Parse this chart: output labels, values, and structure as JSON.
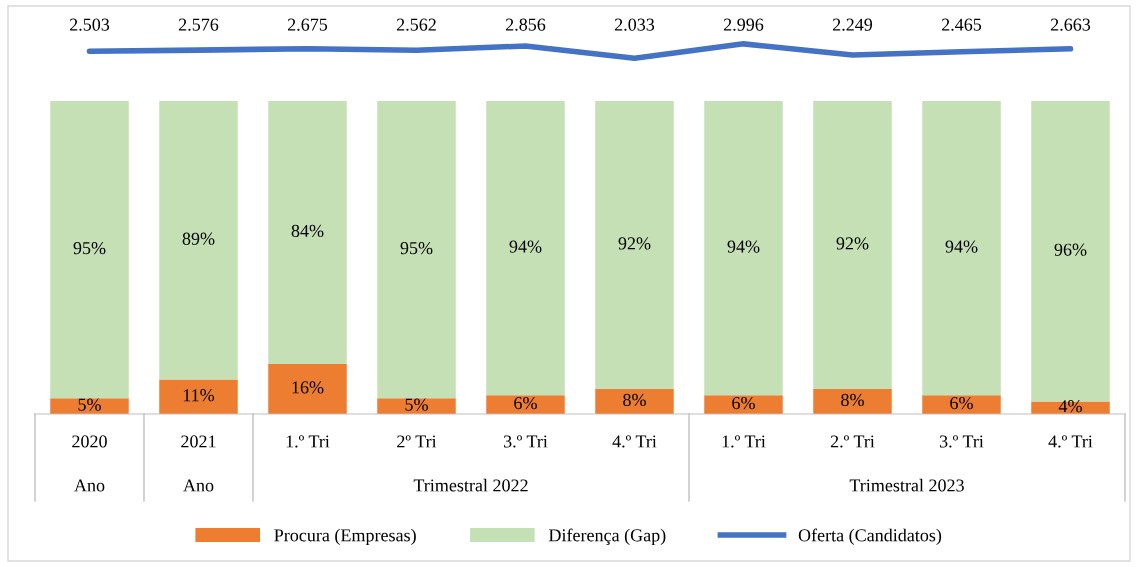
{
  "chart_data": [
    {
      "type": "line",
      "categories": [
        null,
        null,
        null,
        null,
        null,
        null,
        null,
        null,
        null,
        null
      ],
      "series": [
        {
          "name": "Oferta (Candidatos)",
          "color": "#4472c4",
          "values": [
            2503,
            2576,
            2675,
            2562,
            2856,
            2033,
            2996,
            2249,
            2465,
            2663
          ],
          "value_labels": [
            "2.503",
            "2.576",
            "2.675",
            "2.562",
            "2.856",
            "2.033",
            "2.996",
            "2.249",
            "2.465",
            "2.663"
          ]
        }
      ],
      "marker": "none",
      "line_style": "solid"
    },
    {
      "type": "bar",
      "stacked": true,
      "categories": [
        "2020",
        "2021",
        "1.º Tri",
        "2º Tri",
        "3.º Tri",
        "4.º Tri",
        "1.º Tri",
        "2.º Tri",
        "3.º Tri",
        "4.º Tri"
      ],
      "annotations": [
        "Ano",
        "Ano",
        "Trimestral 2022",
        "Trimestral 2023"
      ],
      "series": [
        {
          "name": "Procura (Empresas)",
          "color": "#ed7d31",
          "values": [
            5,
            11,
            16,
            5,
            6,
            8,
            6,
            8,
            6,
            4
          ],
          "value_labels": [
            "5%",
            "11%",
            "16%",
            "5%",
            "6%",
            "8%",
            "6%",
            "8%",
            "6%",
            "4%"
          ]
        },
        {
          "name": "Diferença (Gap)",
          "color": "#c5e0b4",
          "values": [
            95,
            89,
            84,
            95,
            94,
            92,
            94,
            92,
            94,
            96
          ],
          "value_labels": [
            "95%",
            "89%",
            "84%",
            "95%",
            "94%",
            "92%",
            "94%",
            "92%",
            "94%",
            "96%"
          ]
        }
      ],
      "legend": "bottom"
    }
  ]
}
